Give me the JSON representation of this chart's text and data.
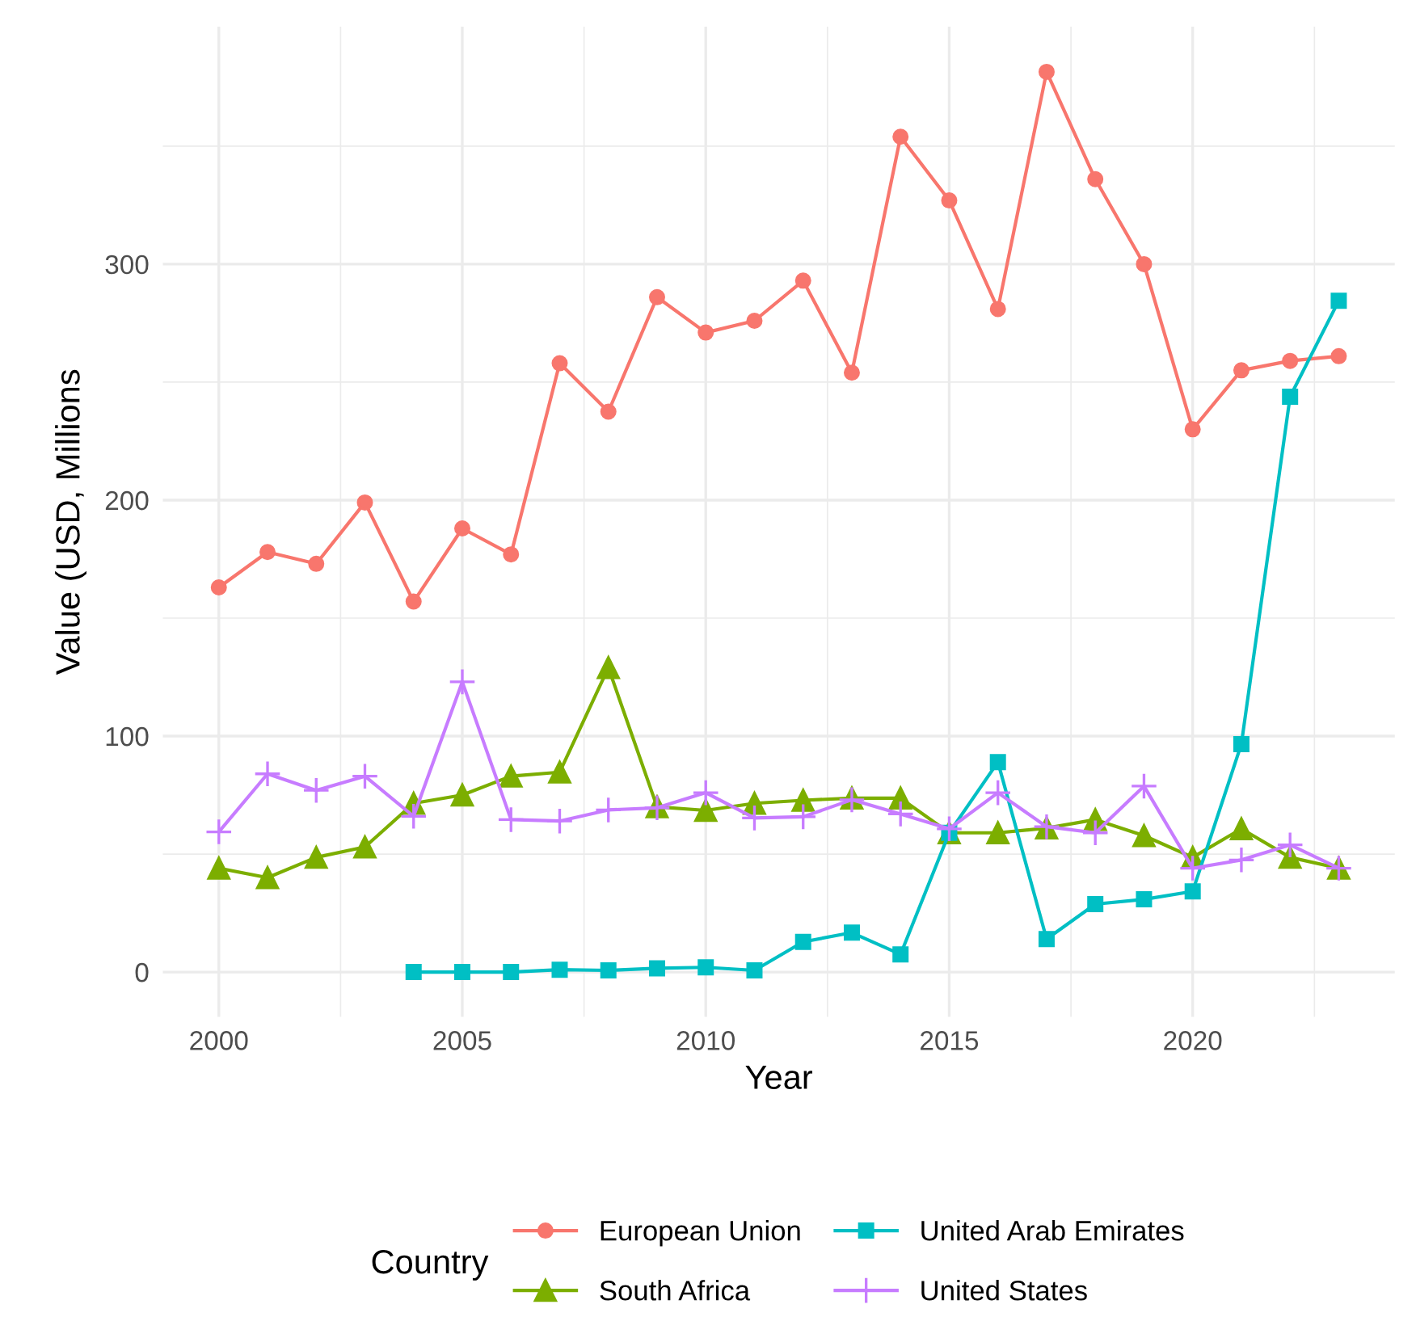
{
  "chart_data": {
    "type": "line",
    "xlabel": "Year",
    "ylabel": "Value (USD, Millions",
    "legend_title": "Country",
    "legend": "bottom",
    "grid": true,
    "x": [
      2000,
      2001,
      2002,
      2003,
      2004,
      2005,
      2006,
      2007,
      2008,
      2009,
      2010,
      2011,
      2012,
      2013,
      2014,
      2015,
      2016,
      2017,
      2018,
      2019,
      2020,
      2021,
      2022,
      2023
    ],
    "xlim": [
      1998.85,
      2024.15
    ],
    "xticks": [
      2000,
      2005,
      2010,
      2015,
      2020
    ],
    "ylim": [
      -19,
      400.6
    ],
    "yticks": [
      0,
      100,
      200,
      300
    ],
    "series": [
      {
        "name": "European Union",
        "color": "#f8766d",
        "marker": "circle",
        "values": [
          163,
          178,
          173,
          199,
          157,
          188,
          177,
          258,
          237.5,
          286,
          271,
          276,
          293,
          254,
          354,
          327,
          281,
          381.5,
          336,
          300,
          230,
          255,
          259,
          261
        ]
      },
      {
        "name": "South Africa",
        "color": "#7cae00",
        "marker": "triangle",
        "values": [
          44,
          40,
          48.6,
          53,
          71.5,
          75,
          83,
          84.7,
          129,
          70,
          68.5,
          71.5,
          72.8,
          73.7,
          73.7,
          59,
          59,
          61,
          64.6,
          57.8,
          48.6,
          60.7,
          48.6,
          44
        ]
      },
      {
        "name": "United Arab Emirates",
        "color": "#00bfc4",
        "marker": "square",
        "values": [
          null,
          null,
          null,
          null,
          0,
          0,
          0,
          1,
          0.7,
          1.6,
          2,
          0.7,
          12.8,
          16.7,
          7.5,
          59,
          89,
          14,
          28.8,
          30.8,
          34.2,
          96.6,
          243.8,
          284.5
        ]
      },
      {
        "name": "United States",
        "color": "#c77cff",
        "marker": "cross",
        "values": [
          59.4,
          84,
          77,
          83,
          66,
          123,
          64.6,
          64,
          68.7,
          69.6,
          76,
          65.3,
          65.8,
          73,
          67,
          60.7,
          76,
          61.6,
          59,
          78.8,
          44,
          47.5,
          53.9,
          44
        ]
      }
    ]
  }
}
